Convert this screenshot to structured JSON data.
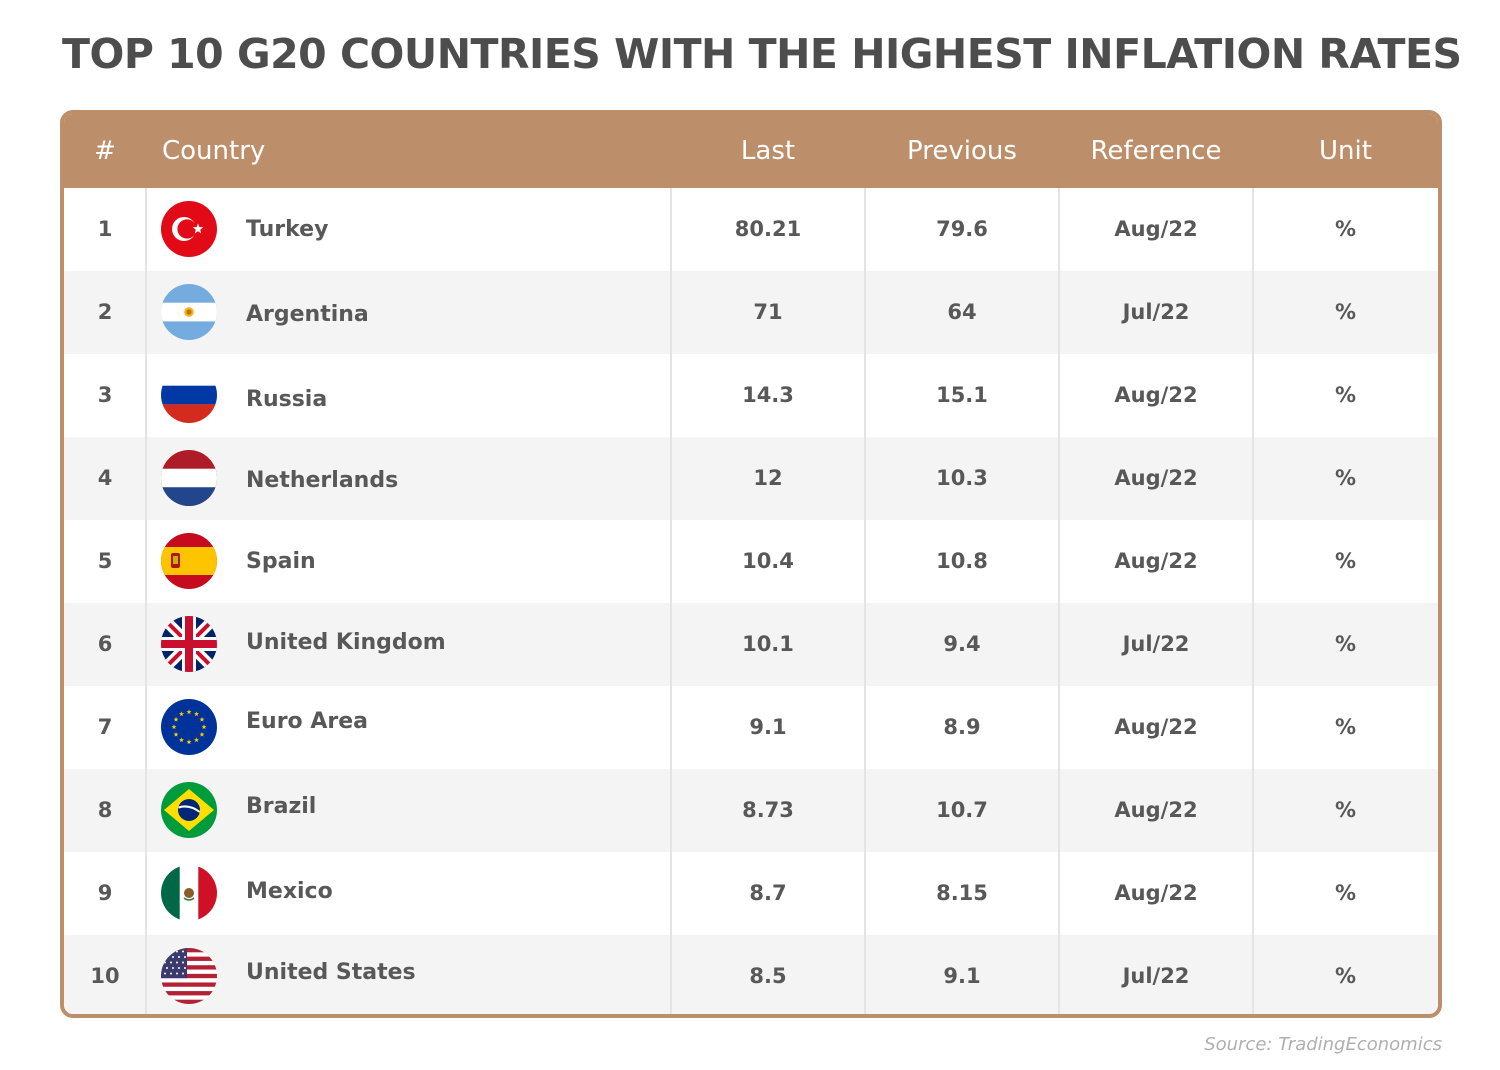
{
  "title": "TOP 10 G20 COUNTRIES WITH THE HIGHEST INFLATION RATES",
  "source": "Source: TradingEconomics",
  "colors": {
    "header_bg": "#bc8f6a",
    "header_text": "#ffffff",
    "row_alt": "#f4f4f4",
    "text": "#585858"
  },
  "chart_data": {
    "type": "table",
    "title": "TOP 10 G20 COUNTRIES WITH THE HIGHEST INFLATION RATES",
    "columns": [
      "#",
      "Country",
      "Last",
      "Previous",
      "Reference",
      "Unit"
    ],
    "rows": [
      {
        "rank": "1",
        "country": "Turkey",
        "flag": "turkey-flag-icon",
        "last": "80.21",
        "previous": "79.6",
        "reference": "Aug/22",
        "unit": "%"
      },
      {
        "rank": "2",
        "country": "Argentina",
        "flag": "argentina-flag-icon",
        "last": "71",
        "previous": "64",
        "reference": "Jul/22",
        "unit": "%"
      },
      {
        "rank": "3",
        "country": "Russia",
        "flag": "russia-flag-icon",
        "last": "14.3",
        "previous": "15.1",
        "reference": "Aug/22",
        "unit": "%"
      },
      {
        "rank": "4",
        "country": "Netherlands",
        "flag": "netherlands-flag-icon",
        "last": "12",
        "previous": "10.3",
        "reference": "Aug/22",
        "unit": "%"
      },
      {
        "rank": "5",
        "country": "Spain",
        "flag": "spain-flag-icon",
        "last": "10.4",
        "previous": "10.8",
        "reference": "Aug/22",
        "unit": "%"
      },
      {
        "rank": "6",
        "country": "United Kingdom",
        "flag": "uk-flag-icon",
        "last": "10.1",
        "previous": "9.4",
        "reference": "Jul/22",
        "unit": "%"
      },
      {
        "rank": "7",
        "country": "Euro Area",
        "flag": "eu-flag-icon",
        "last": "9.1",
        "previous": "8.9",
        "reference": "Aug/22",
        "unit": "%"
      },
      {
        "rank": "8",
        "country": "Brazil",
        "flag": "brazil-flag-icon",
        "last": "8.73",
        "previous": "10.7",
        "reference": "Aug/22",
        "unit": "%"
      },
      {
        "rank": "9",
        "country": "Mexico",
        "flag": "mexico-flag-icon",
        "last": "8.7",
        "previous": "8.15",
        "reference": "Aug/22",
        "unit": "%"
      },
      {
        "rank": "10",
        "country": "United States",
        "flag": "us-flag-icon",
        "last": "8.5",
        "previous": "9.1",
        "reference": "Jul/22",
        "unit": "%"
      }
    ]
  }
}
